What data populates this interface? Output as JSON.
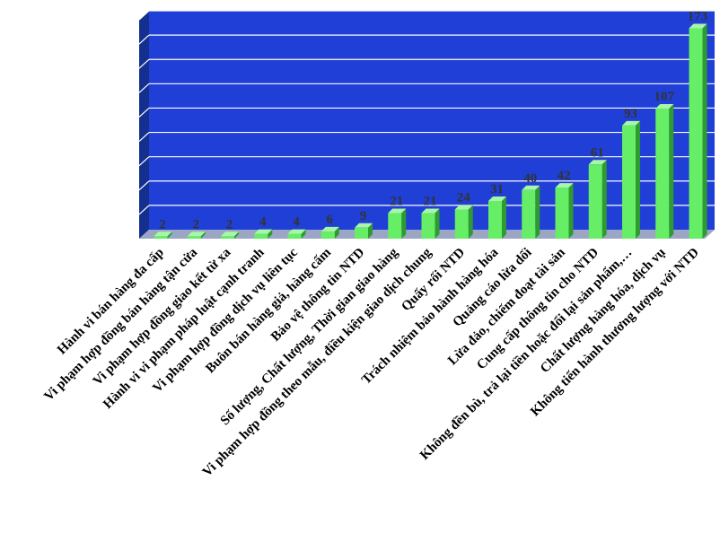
{
  "chart_data": {
    "type": "bar",
    "title": "",
    "xlabel": "",
    "ylabel": "",
    "ylim": [
      0,
      180
    ],
    "grid": true,
    "legend": "none",
    "colors": {
      "plot_background": "#1f3fd6",
      "plot_side_wall": "#14308f",
      "plot_floor": "#9aa6c4",
      "bar_front": "#66ee66",
      "bar_side": "#2f9a2f",
      "bar_top": "#a8f7a8",
      "gridline": "#ffffff"
    },
    "categories": [
      "Hành vi bán hàng đa cấp",
      "Vi phạm hợp đồng bán hàng tận cửa",
      "Vi phạm hợp đồng giao kết từ xa",
      "Hành vi vi phạm pháp luật cạnh tranh",
      "Vi phạm hợp đồng dịch vụ liên tục",
      "Buôn bán hàng giả, hàng cấm",
      "Bảo vệ thông tin NTD",
      "Số lượng, Chất lượng, Thời gian giao hàng",
      "Vi phạm hợp đồng theo mẫu, điều kiện giao dịch chung",
      "Quấy rối NTD",
      "Trách nhiệm bảo hành hàng hóa",
      "Quảng cáo lừa dối",
      "Lừa đảo, chiếm đoạt tài sản",
      "Cung cấp thông tin cho NTD",
      "Không đền bù, trả lại tiền hoặc đổi lại sản phẩm,…",
      "Chất lượng hàng hóa, dịch vụ",
      "Không tiến hành thương lượng với NTD"
    ],
    "values": [
      2,
      2,
      2,
      4,
      4,
      6,
      9,
      21,
      21,
      24,
      31,
      40,
      42,
      61,
      93,
      107,
      173
    ],
    "value_labels": [
      "2",
      "2",
      "2",
      "4",
      "4",
      "6",
      "9",
      "21",
      "21",
      "24",
      "31",
      "40",
      "42",
      "61",
      "93",
      "107",
      "173"
    ]
  }
}
